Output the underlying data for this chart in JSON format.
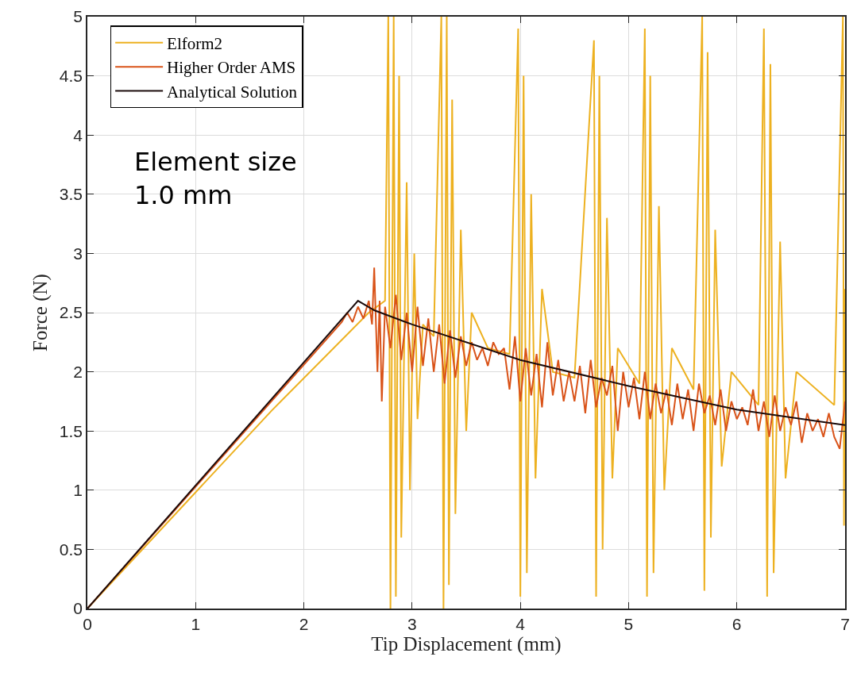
{
  "chart_data": {
    "type": "line",
    "xlabel": "Tip Displacement (mm)",
    "ylabel": "Force (N)",
    "xlim": [
      0,
      7
    ],
    "ylim": [
      0,
      5
    ],
    "xticks": [
      0,
      1,
      2,
      3,
      4,
      5,
      6,
      7
    ],
    "yticks": [
      0,
      0.5,
      1,
      1.5,
      2,
      2.5,
      3,
      3.5,
      4,
      4.5,
      5
    ],
    "grid": true,
    "legend": "top left",
    "annotations": [
      "Element size\n1.0 mm"
    ],
    "series": [
      {
        "name": "Elform2",
        "color": "#edb120",
        "x": [
          0,
          1.7,
          2.6,
          2.75,
          2.78,
          2.8,
          2.83,
          2.85,
          2.88,
          2.9,
          2.95,
          2.98,
          3.02,
          3.05,
          3.1,
          3.2,
          3.27,
          3.29,
          3.32,
          3.34,
          3.37,
          3.4,
          3.45,
          3.5,
          3.55,
          3.7,
          3.9,
          3.98,
          4.0,
          4.03,
          4.06,
          4.1,
          4.14,
          4.2,
          4.3,
          4.5,
          4.68,
          4.7,
          4.73,
          4.76,
          4.8,
          4.85,
          4.9,
          5.1,
          5.15,
          5.17,
          5.2,
          5.23,
          5.28,
          5.33,
          5.4,
          5.6,
          5.68,
          5.7,
          5.73,
          5.76,
          5.8,
          5.86,
          5.95,
          6.2,
          6.25,
          6.28,
          6.31,
          6.34,
          6.4,
          6.45,
          6.55,
          6.9,
          6.98,
          6.99,
          7.0
        ],
        "values": [
          0,
          1.67,
          2.5,
          2.6,
          5,
          0,
          5,
          0.1,
          4.5,
          0.6,
          3.6,
          1.0,
          3.0,
          1.6,
          2.4,
          2.3,
          5,
          0,
          5,
          0.2,
          4.3,
          0.8,
          3.2,
          1.5,
          2.5,
          2.2,
          2.15,
          4.9,
          0.1,
          4.5,
          0.3,
          3.5,
          1.1,
          2.7,
          2.0,
          1.95,
          4.8,
          0.1,
          4.5,
          0.5,
          3.3,
          1.1,
          2.2,
          1.9,
          4.9,
          0.1,
          4.5,
          0.3,
          3.4,
          1.0,
          2.2,
          1.85,
          5,
          0.15,
          4.7,
          0.6,
          3.2,
          1.2,
          2.0,
          1.72,
          4.9,
          0.1,
          4.6,
          0.3,
          3.1,
          1.1,
          2.0,
          1.72,
          5,
          0.7,
          2.7
        ]
      },
      {
        "name": "Higher Order AMS",
        "color": "#d95319",
        "x": [
          0,
          2.35,
          2.4,
          2.45,
          2.5,
          2.55,
          2.6,
          2.63,
          2.65,
          2.68,
          2.7,
          2.72,
          2.75,
          2.8,
          2.85,
          2.9,
          2.95,
          3.0,
          3.05,
          3.1,
          3.15,
          3.2,
          3.25,
          3.3,
          3.35,
          3.4,
          3.45,
          3.5,
          3.55,
          3.6,
          3.65,
          3.7,
          3.75,
          3.8,
          3.85,
          3.9,
          3.95,
          4.0,
          4.05,
          4.1,
          4.15,
          4.2,
          4.25,
          4.3,
          4.35,
          4.4,
          4.45,
          4.5,
          4.55,
          4.6,
          4.65,
          4.7,
          4.75,
          4.8,
          4.85,
          4.9,
          4.95,
          5.0,
          5.05,
          5.1,
          5.15,
          5.2,
          5.25,
          5.3,
          5.35,
          5.4,
          5.45,
          5.5,
          5.55,
          5.6,
          5.65,
          5.7,
          5.75,
          5.8,
          5.85,
          5.9,
          5.95,
          6.0,
          6.05,
          6.1,
          6.15,
          6.2,
          6.25,
          6.3,
          6.35,
          6.4,
          6.45,
          6.5,
          6.55,
          6.6,
          6.65,
          6.7,
          6.75,
          6.8,
          6.85,
          6.9,
          6.95,
          7.0
        ],
        "values": [
          0,
          2.42,
          2.5,
          2.42,
          2.55,
          2.45,
          2.6,
          2.4,
          2.88,
          2.0,
          2.6,
          1.75,
          2.55,
          2.2,
          2.65,
          2.1,
          2.5,
          2.0,
          2.55,
          2.05,
          2.45,
          2.0,
          2.4,
          1.9,
          2.35,
          1.95,
          2.3,
          2.05,
          2.25,
          2.1,
          2.2,
          2.05,
          2.25,
          2.15,
          2.2,
          1.85,
          2.3,
          1.75,
          2.2,
          1.8,
          2.15,
          1.7,
          2.25,
          1.8,
          2.1,
          1.75,
          2.0,
          1.75,
          2.05,
          1.65,
          2.1,
          1.7,
          1.95,
          1.8,
          2.05,
          1.5,
          2.0,
          1.7,
          1.95,
          1.6,
          2.0,
          1.6,
          1.9,
          1.65,
          1.85,
          1.55,
          1.9,
          1.6,
          1.85,
          1.5,
          1.9,
          1.65,
          1.8,
          1.55,
          1.85,
          1.5,
          1.75,
          1.6,
          1.7,
          1.55,
          1.85,
          1.5,
          1.75,
          1.45,
          1.8,
          1.5,
          1.7,
          1.55,
          1.75,
          1.4,
          1.65,
          1.5,
          1.6,
          1.45,
          1.65,
          1.45,
          1.35,
          1.75
        ]
      },
      {
        "name": "Analytical Solution",
        "color": "#1a0a0a",
        "x": [
          0,
          2.5,
          2.65,
          3.0,
          4.0,
          5.0,
          6.0,
          7.0
        ],
        "values": [
          0,
          2.6,
          2.52,
          2.4,
          2.1,
          1.88,
          1.68,
          1.55
        ]
      }
    ]
  }
}
